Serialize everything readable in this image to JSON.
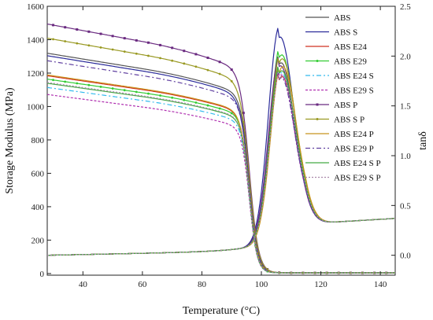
{
  "chart_data": {
    "type": "line",
    "xlabel": "Temperature (°C)",
    "ylabel_left": "Storage Modulus (MPa)",
    "ylabel_right": "tanδ",
    "xlim": [
      28,
      145
    ],
    "ylim_left": [
      -10,
      1600
    ],
    "ylim_right": [
      -0.2,
      2.5
    ],
    "x_ticks": [
      40,
      60,
      80,
      100,
      120,
      140
    ],
    "y_left_ticks": [
      0,
      200,
      400,
      600,
      800,
      1000,
      1200,
      1400,
      1600
    ],
    "y_right_ticks": [
      0.0,
      0.5,
      1.0,
      1.5,
      2.0,
      2.5
    ],
    "y_right_tick_labels": [
      "0.0",
      "0.5",
      "1.0",
      "1.5",
      "2.0",
      "2.5"
    ],
    "legend_placement": "top-right",
    "grid": false,
    "series": [
      {
        "name": "ABS",
        "color": "#555555",
        "dash": "",
        "marker": "none",
        "E_start": 1315,
        "E_k": 0.13,
        "tan_peak": 1.98,
        "tan_peak_x": 106.3
      },
      {
        "name": "ABS S",
        "color": "#2b2b9a",
        "dash": "",
        "marker": "none",
        "E_start": 1300,
        "E_k": 0.12,
        "tan_peak": 2.24,
        "tan_peak_x": 106.0
      },
      {
        "name": "ABS E24",
        "color": "#d03020",
        "dash": "",
        "marker": "none",
        "E_start": 1180,
        "E_k": 0.13,
        "tan_peak": 1.84,
        "tan_peak_x": 106.6
      },
      {
        "name": "ABS E29",
        "color": "#33cc33",
        "dash": "",
        "marker": "dot",
        "E_start": 1160,
        "E_k": 0.14,
        "tan_peak": 2.06,
        "tan_peak_x": 106.5
      },
      {
        "name": "ABS E24 S",
        "color": "#33bbee",
        "dash": "6,3,2,3",
        "marker": "none",
        "E_start": 1110,
        "E_k": 0.14,
        "tan_peak": 1.88,
        "tan_peak_x": 106.4
      },
      {
        "name": "ABS E29 S",
        "color": "#b030b0",
        "dash": "3,2",
        "marker": "none",
        "E_start": 1068,
        "E_k": 0.14,
        "tan_peak": 1.86,
        "tan_peak_x": 106.2
      },
      {
        "name": "ABS P",
        "color": "#6a2a80",
        "dash": "",
        "marker": "square",
        "E_start": 1490,
        "E_k": 0.12,
        "tan_peak": 1.95,
        "tan_peak_x": 106.1
      },
      {
        "name": "ABS S P",
        "color": "#999922",
        "dash": "",
        "marker": "circle",
        "E_start": 1405,
        "E_k": 0.12,
        "tan_peak": 2.02,
        "tan_peak_x": 106.7
      },
      {
        "name": "ABS E24 P",
        "color": "#c8941e",
        "dash": "",
        "marker": "none",
        "E_start": 1185,
        "E_k": 0.13,
        "tan_peak": 1.94,
        "tan_peak_x": 106.9
      },
      {
        "name": "ABS E29 P",
        "color": "#6040a0",
        "dash": "6,3,2,3",
        "marker": "none",
        "E_start": 1270,
        "E_k": 0.13,
        "tan_peak": 1.83,
        "tan_peak_x": 106.3
      },
      {
        "name": "ABS E24 S P",
        "color": "#44aa44",
        "dash": "",
        "marker": "none",
        "E_start": 1135,
        "E_k": 0.14,
        "tan_peak": 1.9,
        "tan_peak_x": 106.5
      },
      {
        "name": "ABS E29 S P",
        "color": "#aa88aa",
        "dash": "2,2",
        "marker": "none",
        "E_start": 1140,
        "E_k": 0.14,
        "tan_peak": 1.85,
        "tan_peak_x": 106.6
      }
    ]
  }
}
